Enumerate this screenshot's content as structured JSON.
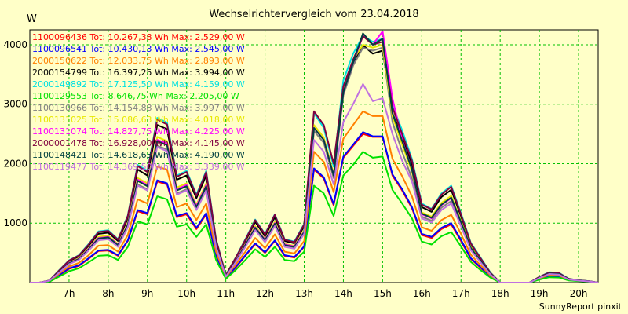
{
  "chart_data": {
    "type": "line",
    "title": "Wechselrichtervergleich vom 23.04.2018",
    "unit_label": "W",
    "footer": "SunnyReport pinxit",
    "xlabel": "",
    "ylabel": "W",
    "ylim": [
      0,
      4250
    ],
    "xlim": [
      6.0,
      20.5
    ],
    "yticks": [
      1000,
      2000,
      3000,
      4000
    ],
    "xticks": [
      7,
      8,
      9,
      10,
      11,
      12,
      13,
      14,
      15,
      16,
      17,
      18,
      19,
      20
    ],
    "xtick_labels": [
      "7h",
      "8h",
      "9h",
      "10h",
      "11h",
      "12h",
      "13h",
      "14h",
      "15h",
      "16h",
      "17h",
      "18h",
      "19h",
      "20h"
    ],
    "grid": true,
    "legend_position": "top-left",
    "x": [
      6.0,
      6.25,
      6.5,
      6.75,
      7.0,
      7.25,
      7.5,
      7.75,
      8.0,
      8.25,
      8.5,
      8.75,
      9.0,
      9.25,
      9.5,
      9.75,
      10.0,
      10.25,
      10.5,
      10.75,
      11.0,
      11.25,
      11.5,
      11.75,
      12.0,
      12.25,
      12.5,
      12.75,
      13.0,
      13.25,
      13.5,
      13.75,
      14.0,
      14.25,
      14.5,
      14.75,
      15.0,
      15.25,
      15.5,
      15.75,
      16.0,
      16.25,
      16.5,
      16.75,
      17.0,
      17.25,
      17.5,
      17.75,
      18.0,
      18.25,
      18.5,
      18.75,
      19.0,
      19.25,
      19.5,
      19.75,
      20.0,
      20.25,
      20.5
    ],
    "series": [
      {
        "name": "1100096436 Tot: 10.267,38 Wh Max: 2.529,00 W",
        "color": "#ff0000",
        "values": [
          0,
          0,
          20,
          120,
          230,
          280,
          400,
          530,
          540,
          450,
          700,
          1200,
          1150,
          1700,
          1650,
          1100,
          1150,
          900,
          1150,
          450,
          80,
          250,
          450,
          650,
          500,
          700,
          450,
          420,
          600,
          1900,
          1750,
          1300,
          2100,
          2300,
          2500,
          2450,
          2450,
          1800,
          1550,
          1250,
          800,
          750,
          900,
          980,
          700,
          400,
          250,
          100,
          0,
          0,
          0,
          0,
          60,
          110,
          100,
          40,
          30,
          20,
          0
        ]
      },
      {
        "name": "1100096541 Tot: 10.430,13 Wh Max: 2.545,00 W",
        "color": "#0000ff",
        "values": [
          0,
          0,
          20,
          130,
          240,
          290,
          410,
          540,
          550,
          460,
          710,
          1220,
          1170,
          1720,
          1670,
          1120,
          1170,
          920,
          1170,
          460,
          80,
          260,
          460,
          660,
          510,
          710,
          460,
          430,
          610,
          1920,
          1770,
          1320,
          2120,
          2320,
          2530,
          2460,
          2460,
          1820,
          1570,
          1270,
          820,
          770,
          920,
          1000,
          720,
          410,
          260,
          100,
          0,
          0,
          0,
          0,
          60,
          110,
          100,
          40,
          30,
          20,
          0
        ]
      },
      {
        "name": "2000150622 Tot: 12.033,75 Wh Max: 2.893,00 W",
        "color": "#ff8000",
        "values": [
          0,
          0,
          25,
          150,
          270,
          330,
          460,
          620,
          630,
          520,
          800,
          1400,
          1330,
          1950,
          1900,
          1270,
          1330,
          1050,
          1330,
          520,
          90,
          300,
          520,
          750,
          580,
          810,
          520,
          490,
          700,
          2200,
          2030,
          1520,
          2420,
          2650,
          2880,
          2800,
          2800,
          2080,
          1790,
          1450,
          930,
          870,
          1050,
          1140,
          820,
          470,
          290,
          120,
          0,
          0,
          0,
          0,
          70,
          130,
          120,
          50,
          30,
          20,
          0
        ]
      },
      {
        "name": "2000154799 Tot: 16.397,25 Wh Max: 3.994,00 W",
        "color": "#000000",
        "values": [
          0,
          0,
          35,
          200,
          360,
          440,
          620,
          820,
          840,
          700,
          1080,
          1900,
          1800,
          2650,
          2580,
          1730,
          1800,
          1420,
          1800,
          700,
          120,
          400,
          700,
          1020,
          780,
          1100,
          700,
          660,
          950,
          2850,
          2620,
          1980,
          3250,
          3700,
          3990,
          3850,
          3900,
          2850,
          2450,
          1990,
          1270,
          1190,
          1440,
          1560,
          1120,
          640,
          400,
          160,
          0,
          0,
          0,
          0,
          90,
          170,
          160,
          60,
          40,
          25,
          0
        ]
      },
      {
        "name": "2000149892 Tot: 17.125,50 Wh Max: 4.159,00 W",
        "color": "#00e0e0",
        "values": [
          0,
          0,
          35,
          210,
          375,
          460,
          650,
          860,
          880,
          730,
          1130,
          1980,
          1880,
          2770,
          2690,
          1800,
          1880,
          1480,
          1880,
          730,
          125,
          420,
          730,
          1060,
          820,
          1150,
          730,
          690,
          990,
          2850,
          2600,
          1950,
          3400,
          3850,
          4150,
          4050,
          4100,
          2980,
          2560,
          2080,
          1330,
          1240,
          1500,
          1630,
          1170,
          670,
          420,
          170,
          0,
          0,
          0,
          0,
          95,
          175,
          165,
          65,
          40,
          25,
          0
        ]
      },
      {
        "name": "1100129553 Tot: 8.646,75 Wh Max: 2.205,00 W",
        "color": "#00e000",
        "values": [
          0,
          0,
          15,
          100,
          190,
          240,
          340,
          450,
          460,
          380,
          600,
          1030,
          980,
          1450,
          1400,
          940,
          980,
          770,
          980,
          380,
          65,
          210,
          380,
          560,
          430,
          600,
          380,
          360,
          520,
          1630,
          1500,
          1120,
          1800,
          1980,
          2200,
          2100,
          2120,
          1560,
          1330,
          1080,
          690,
          640,
          780,
          850,
          610,
          350,
          210,
          85,
          0,
          0,
          0,
          0,
          50,
          90,
          85,
          35,
          25,
          15,
          0
        ]
      },
      {
        "name": "1100130966 Tot: 14.154,88 Wh Max: 3.997,00 W",
        "color": "#808080",
        "values": [
          0,
          0,
          30,
          175,
          315,
          385,
          545,
          720,
          740,
          610,
          940,
          1650,
          1570,
          2300,
          2240,
          1500,
          1570,
          1230,
          1570,
          610,
          105,
          350,
          610,
          890,
          690,
          960,
          610,
          580,
          830,
          2550,
          2350,
          1760,
          3150,
          3650,
          3950,
          3900,
          3950,
          2700,
          2200,
          1750,
          1110,
          1040,
          1260,
          1370,
          980,
          560,
          350,
          140,
          0,
          0,
          0,
          0,
          80,
          150,
          140,
          55,
          35,
          20,
          0
        ]
      },
      {
        "name": "1100131025 Tot: 15.086,63 Wh Max: 4.018,00 W",
        "color": "#e8e800",
        "values": [
          0,
          0,
          32,
          185,
          335,
          410,
          580,
          770,
          790,
          650,
          1000,
          1760,
          1670,
          2450,
          2380,
          1600,
          1670,
          1310,
          1670,
          650,
          110,
          370,
          650,
          950,
          730,
          1020,
          650,
          620,
          880,
          2650,
          2440,
          1830,
          3250,
          3750,
          4000,
          3950,
          4000,
          2800,
          2320,
          1860,
          1180,
          1110,
          1340,
          1460,
          1040,
          600,
          370,
          150,
          0,
          0,
          0,
          0,
          85,
          160,
          150,
          58,
          38,
          22,
          0
        ]
      },
      {
        "name": "1100131074 Tot: 14.827,75 Wh Max: 4.225,00 W",
        "color": "#ff00ff",
        "values": [
          0,
          0,
          30,
          180,
          330,
          400,
          570,
          750,
          770,
          640,
          980,
          1730,
          1640,
          2400,
          2340,
          1570,
          1640,
          1290,
          1640,
          640,
          110,
          360,
          640,
          930,
          720,
          1000,
          640,
          610,
          860,
          2600,
          2400,
          1800,
          3200,
          3700,
          4150,
          4000,
          4225,
          3100,
          2400,
          1900,
          1150,
          1080,
          1300,
          1420,
          1010,
          580,
          360,
          145,
          0,
          0,
          0,
          0,
          80,
          155,
          145,
          56,
          36,
          22,
          0
        ]
      },
      {
        "name": "2000001478 Tot: 16.928,00 Wh Max: 4.145,00 W",
        "color": "#800040",
        "values": [
          0,
          0,
          35,
          205,
          370,
          455,
          640,
          850,
          870,
          720,
          1120,
          1960,
          1860,
          2740,
          2660,
          1780,
          1860,
          1460,
          1860,
          720,
          125,
          415,
          720,
          1050,
          810,
          1140,
          720,
          680,
          980,
          2880,
          2650,
          2000,
          3300,
          3750,
          4145,
          4000,
          4050,
          2950,
          2500,
          2050,
          1310,
          1230,
          1480,
          1610,
          1150,
          660,
          410,
          165,
          0,
          0,
          0,
          0,
          95,
          170,
          160,
          62,
          40,
          24,
          0
        ]
      },
      {
        "name": "1100148421 Tot: 14.618,63 Wh Max: 4.190,00 W",
        "color": "#004040",
        "values": [
          0,
          0,
          30,
          180,
          325,
          395,
          560,
          740,
          760,
          630,
          970,
          1710,
          1620,
          2380,
          2310,
          1550,
          1620,
          1270,
          1620,
          630,
          108,
          355,
          630,
          920,
          710,
          990,
          630,
          600,
          850,
          2600,
          2400,
          1800,
          3200,
          3700,
          4190,
          4000,
          4100,
          2850,
          2380,
          1900,
          1160,
          1090,
          1310,
          1430,
          1020,
          585,
          365,
          148,
          0,
          0,
          0,
          0,
          82,
          155,
          145,
          56,
          36,
          22,
          0
        ]
      },
      {
        "name": "1100119477 Tot: 14.369,50 Wh Max: 3.339,00 W",
        "color": "#c070e0",
        "values": [
          0,
          0,
          30,
          170,
          310,
          380,
          540,
          710,
          730,
          600,
          930,
          1630,
          1550,
          2280,
          2210,
          1480,
          1550,
          1220,
          1550,
          600,
          102,
          340,
          600,
          880,
          680,
          950,
          600,
          570,
          820,
          2400,
          2200,
          1650,
          2700,
          3000,
          3339,
          3050,
          3100,
          2500,
          2050,
          1700,
          1080,
          1010,
          1220,
          1330,
          950,
          545,
          340,
          137,
          0,
          0,
          0,
          0,
          78,
          145,
          135,
          52,
          33,
          20,
          0
        ]
      }
    ]
  }
}
